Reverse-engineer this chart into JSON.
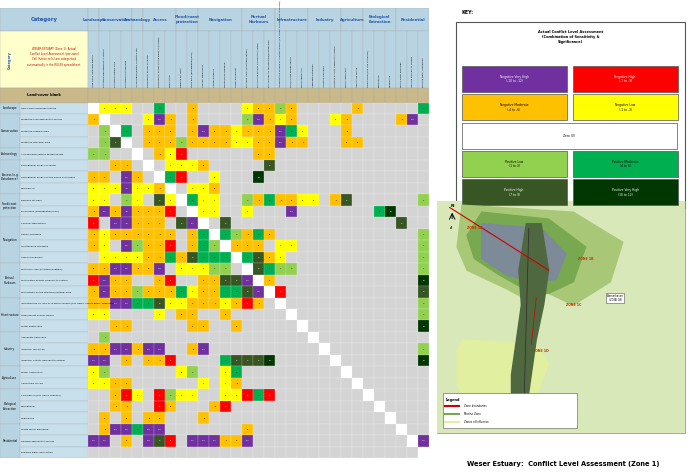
{
  "title": "Weser Estuary:  Conflict Level Assessment (Zone 1)",
  "note_text": "WESER ESTUARY (Zone 1): Actual\nConflict Level Assessment (per zone)\nCell (hence cells) are categorised\nautomatically in the RULES spreadsheet.",
  "land_cover_label": "Land-cover blank",
  "header_bg": "#b8d4e3",
  "cat_bg": "#b8d4e3",
  "row_label_bg": "#c8e0ec",
  "note_bg": "#ffffcc",
  "tan_col": "#c8b88a",
  "color_map": {
    "neg_very_high": "#7030a0",
    "neg_high": "#ff0000",
    "neg_moderate": "#ffc000",
    "neg_low": "#ffff00",
    "zero": "#ffffff",
    "pos_low": "#92d050",
    "pos_moderate": "#00b050",
    "pos_high": "#375623",
    "pos_very_high": "#003700",
    "blank": "#d4d4d4"
  },
  "row_labels": [
    "High value landscape feature",
    "Protected area adjacent to system",
    "Protected subtidal area",
    "Protected intertidal area",
    "Archaelogical/history protected site",
    "Recreational access on water",
    "Recreational access on the banks & interface",
    "Commercial",
    "Defence set-back",
    "Flood bank (demagnation/level)",
    "Channel stabilisation",
    "Capital Dredging",
    "Maintenance Dredging",
    "Vessel movement",
    "Port land claim (intertidal/subtidal)",
    "Port related activity adjacent to system",
    "Port activity on the intertidal/subtidal area",
    "Infrastructure on land or in water column (e.g. pipes, cables, piers, moorings)",
    "Tidal/current energy device",
    "Water abstraction",
    "Aggregate extraction",
    "Industrial discharge",
    "Industrial activity adjacent to system",
    "Water Abstraction",
    "Agriculture run-off",
    "Commercial (e.g. fish & shellfish)",
    "Recreational",
    "Wildfowling",
    "Waste water discharge",
    "Housing adjacent to system",
    "Drinking water abstraction"
  ],
  "col_labels": [
    "High value landscape feature",
    "Protected area adjacent to system",
    "Protected subtidal area",
    "Protected intertidal area",
    "Archaelogical/history protected site",
    "Recreational access on water",
    "Recreational access on the banks & interface",
    "Commercial",
    "Defence set-back",
    "Flood bank (demagnation/level)",
    "Channel stabilisation",
    "Capital Dredging",
    "Maintenance Dredging",
    "Vessel movement",
    "Port land claim (intertidal/subtidal)",
    "Port related activity adjacent to system",
    "Port activity on the intertidal/subtidal area",
    "Infrastructure on land or in water column (e.g. pipes, cables, piers, moorings)",
    "Tidal/current energy device",
    "Water abstraction",
    "Aggregate extraction",
    "Industrial discharge",
    "Industrial activity adjacent to system",
    "Water Abstraction",
    "Agriculture run-off",
    "Commercial (e.g. fish & shellfish)",
    "Recreational",
    "Wildfowling",
    "Waste water discharge",
    "Housing adjacent to system",
    "Drinking water abstraction"
  ],
  "col_groups": [
    [
      "Landscape",
      [
        0
      ]
    ],
    [
      "Conservation",
      [
        1,
        2,
        3
      ]
    ],
    [
      "Archaeology",
      [
        4
      ]
    ],
    [
      "Access",
      [
        5,
        6,
        7
      ]
    ],
    [
      "Flood/coast\nprotection",
      [
        8,
        9
      ]
    ],
    [
      "Navigation",
      [
        10,
        11,
        12,
        13
      ]
    ],
    [
      "Portual\nHarbours",
      [
        14,
        15,
        16
      ]
    ],
    [
      "Infrastructure",
      [
        17,
        18,
        19
      ]
    ],
    [
      "Industry",
      [
        20,
        21,
        22
      ]
    ],
    [
      "Agriculture",
      [
        23,
        24
      ]
    ],
    [
      "Biological\nExtraction",
      [
        25,
        26,
        27
      ]
    ],
    [
      "Residential",
      [
        28,
        29,
        30
      ]
    ]
  ],
  "row_cats": [
    [
      "Landscape",
      [
        0
      ]
    ],
    [
      "Conservation",
      [
        1,
        2,
        3
      ]
    ],
    [
      "Archaeology",
      [
        4
      ]
    ],
    [
      "Access (e.g.\nDisturbance)",
      [
        5,
        6,
        7
      ]
    ],
    [
      "Flood/coast\nprotection",
      [
        8,
        9
      ]
    ],
    [
      "Navigation",
      [
        10,
        11,
        12,
        13
      ]
    ],
    [
      "Portual\nHarbours",
      [
        14,
        15,
        16
      ]
    ],
    [
      "Infrastructure",
      [
        17,
        18,
        19
      ]
    ],
    [
      "Industry",
      [
        20,
        21,
        22
      ]
    ],
    [
      "Agriculture",
      [
        23,
        24
      ]
    ],
    [
      "Biological\nExtraction",
      [
        25,
        26,
        27
      ]
    ],
    [
      "Residential",
      [
        28,
        29,
        30
      ]
    ]
  ],
  "matrix_vals": [
    [
      null,
      -2,
      -3,
      -3,
      0,
      0,
      6,
      0,
      0,
      -4,
      0,
      0,
      0,
      0,
      -2,
      -6,
      -6,
      3,
      -6,
      0,
      0,
      0,
      0,
      0,
      -4,
      0,
      0,
      0,
      0,
      0,
      4
    ],
    [
      -4,
      null,
      0,
      0,
      0,
      -3,
      -10,
      -4,
      0,
      -4,
      0,
      0,
      0,
      0,
      2,
      -10,
      -4,
      -1,
      -6,
      0,
      0,
      0,
      -2,
      -4,
      0,
      0,
      0,
      0,
      -4,
      -10,
      0
    ],
    [
      0,
      1,
      null,
      6,
      0,
      -4,
      -6,
      -6,
      0,
      -6,
      -10,
      -6,
      -4,
      -3,
      -4,
      -6,
      -4,
      -10,
      4,
      -1,
      0,
      0,
      0,
      -4,
      0,
      0,
      0,
      0,
      0,
      0,
      0
    ],
    [
      0,
      1,
      8,
      null,
      0,
      -4,
      -6,
      -6,
      3,
      -6,
      -6,
      -6,
      -4,
      -3,
      -3,
      -6,
      -6,
      -10,
      -4,
      -4,
      0,
      0,
      0,
      -6,
      -6,
      0,
      0,
      0,
      0,
      0,
      0
    ],
    [
      2,
      1,
      0,
      0,
      null,
      0,
      -4,
      -3,
      -8,
      0,
      0,
      0,
      0,
      0,
      0,
      -6,
      -6,
      0,
      0,
      0,
      0,
      0,
      0,
      0,
      0,
      0,
      0,
      0,
      0,
      0,
      0
    ],
    [
      0,
      0,
      -6,
      -4,
      0,
      null,
      0,
      -1,
      -3,
      -1,
      -5,
      0,
      0,
      0,
      0,
      0,
      8,
      0,
      0,
      0,
      0,
      0,
      0,
      0,
      0,
      0,
      0,
      0,
      0,
      0,
      0
    ],
    [
      -4,
      -6,
      0,
      -10,
      -4,
      0,
      null,
      6,
      -8,
      0,
      0,
      -3,
      0,
      0,
      0,
      10,
      0,
      0,
      0,
      0,
      0,
      0,
      0,
      0,
      0,
      0,
      0,
      0,
      0,
      0,
      0
    ],
    [
      -2,
      -2,
      -3,
      -46,
      -1,
      -3,
      -4,
      null,
      0,
      -1,
      -3,
      -6,
      0,
      0,
      0,
      0,
      0,
      0,
      0,
      0,
      0,
      0,
      0,
      0,
      0,
      0,
      0,
      0,
      0,
      0,
      0
    ],
    [
      -3,
      -3,
      0,
      3,
      -1,
      0,
      8,
      -1,
      null,
      4,
      -1,
      -1,
      0,
      0,
      3,
      -4,
      4,
      -4,
      -5,
      -3,
      -2,
      0,
      -4,
      8,
      0,
      0,
      0,
      0,
      0,
      0,
      1
    ],
    [
      -4,
      -10,
      -6,
      -40,
      -4,
      -6,
      -6,
      -8,
      0,
      null,
      -1,
      -1,
      0,
      0,
      -1,
      0,
      0,
      0,
      -10,
      0,
      0,
      0,
      0,
      0,
      0,
      0,
      6,
      12,
      0,
      0,
      0
    ],
    [
      -8,
      0,
      -10,
      -40,
      -4,
      -6,
      -6,
      0,
      8,
      -11,
      null,
      0,
      8,
      0,
      0,
      0,
      0,
      0,
      0,
      0,
      0,
      0,
      0,
      0,
      0,
      0,
      0,
      0,
      8,
      0,
      0
    ],
    [
      -4,
      -2,
      -6,
      -6,
      -4,
      -6,
      -4,
      -6,
      0,
      -5,
      4,
      null,
      4,
      3,
      -4,
      6,
      -6,
      0,
      0,
      0,
      0,
      0,
      0,
      0,
      0,
      0,
      0,
      0,
      0,
      0,
      1
    ],
    [
      -4,
      -2,
      0,
      -16,
      1,
      -6,
      -4,
      -8,
      0,
      -5,
      4,
      2,
      null,
      -4,
      -6,
      -6,
      0,
      -1,
      -3,
      0,
      0,
      0,
      0,
      0,
      0,
      0,
      0,
      0,
      0,
      0,
      1
    ],
    [
      0,
      -2,
      -3,
      -3,
      -2,
      -6,
      -4,
      5,
      -4,
      8,
      4,
      4,
      4,
      null,
      4,
      8,
      -6,
      -3,
      0,
      0,
      0,
      0,
      0,
      0,
      0,
      0,
      0,
      0,
      0,
      0,
      1
    ],
    [
      -6,
      -6,
      -16,
      -16,
      -4,
      -6,
      -10,
      0,
      -2,
      -1,
      -2,
      2,
      3,
      0,
      null,
      8,
      4,
      1,
      3,
      0,
      0,
      0,
      0,
      0,
      0,
      0,
      0,
      0,
      0,
      0,
      1
    ],
    [
      -8,
      -16,
      -6,
      -6,
      0,
      0,
      -6,
      -8,
      0,
      0,
      -6,
      -6,
      8,
      8,
      -12,
      null,
      -6,
      0,
      0,
      0,
      0,
      0,
      0,
      0,
      0,
      0,
      0,
      0,
      0,
      0,
      12
    ],
    [
      -4,
      -16,
      -6,
      -6,
      1,
      -6,
      -6,
      -4,
      5,
      -1,
      -6,
      -6,
      4,
      4,
      8,
      -16,
      null,
      -8,
      0,
      0,
      0,
      0,
      0,
      0,
      0,
      0,
      0,
      0,
      0,
      0,
      8
    ],
    [
      -4,
      -4,
      -10,
      -10,
      4,
      4,
      8,
      -3,
      -1,
      -6,
      -6,
      -4,
      -3,
      -5,
      -8,
      -4,
      0,
      null,
      0,
      0,
      0,
      0,
      0,
      0,
      0,
      0,
      0,
      0,
      0,
      0,
      3
    ],
    [
      -3,
      -3,
      0,
      0,
      0,
      0,
      -3,
      0,
      -6,
      -6,
      0,
      0,
      -6,
      0,
      0,
      0,
      0,
      0,
      null,
      0,
      0,
      0,
      0,
      0,
      0,
      0,
      0,
      0,
      0,
      0,
      3
    ],
    [
      0,
      0,
      -4,
      -4,
      0,
      0,
      0,
      0,
      0,
      -6,
      -6,
      0,
      0,
      -6,
      0,
      0,
      0,
      0,
      0,
      null,
      0,
      0,
      0,
      0,
      0,
      0,
      0,
      0,
      0,
      0,
      10
    ],
    [
      0,
      1,
      0,
      0,
      0,
      0,
      0,
      0,
      0,
      0,
      0,
      0,
      0,
      0,
      0,
      0,
      0,
      0,
      0,
      0,
      null,
      0,
      0,
      0,
      0,
      0,
      0,
      0,
      0,
      0,
      0
    ],
    [
      -4,
      -4,
      -10,
      -10,
      -4,
      -10,
      -12,
      0,
      0,
      -4,
      -10,
      0,
      0,
      0,
      0,
      0,
      0,
      0,
      0,
      0,
      0,
      null,
      0,
      0,
      0,
      0,
      0,
      0,
      0,
      0,
      1
    ],
    [
      -10,
      -10,
      0,
      -6,
      0,
      -6,
      -4,
      -8,
      0,
      0,
      0,
      0,
      4,
      8,
      8,
      8,
      10,
      0,
      0,
      0,
      0,
      0,
      null,
      0,
      0,
      0,
      0,
      0,
      0,
      0,
      12
    ],
    [
      -2,
      2,
      0,
      0,
      0,
      0,
      0,
      0,
      -2,
      2,
      0,
      0,
      -1,
      4,
      0,
      0,
      0,
      0,
      0,
      0,
      0,
      0,
      0,
      null,
      0,
      0,
      0,
      0,
      0,
      0,
      0
    ],
    [
      -2,
      -2,
      -6,
      -6,
      0,
      0,
      0,
      0,
      0,
      0,
      -1,
      0,
      -1,
      -4,
      0,
      0,
      0,
      0,
      0,
      0,
      0,
      0,
      0,
      0,
      null,
      0,
      0,
      0,
      0,
      0,
      0
    ],
    [
      0,
      0,
      -6,
      -8,
      -1,
      0,
      -9,
      2,
      -1,
      -1,
      0,
      0,
      -2,
      -2,
      -8,
      6,
      -8,
      0,
      0,
      0,
      0,
      0,
      0,
      0,
      0,
      null,
      0,
      0,
      0,
      0,
      0
    ],
    [
      0,
      0,
      -4,
      -4,
      0,
      0,
      -9,
      -6,
      0,
      0,
      0,
      -4,
      -8,
      0,
      0,
      0,
      0,
      0,
      0,
      0,
      0,
      0,
      0,
      0,
      0,
      0,
      null,
      0,
      0,
      0,
      0
    ],
    [
      0,
      -6,
      0,
      -6,
      0,
      -4,
      -6,
      0,
      0,
      0,
      -4,
      0,
      0,
      0,
      0,
      0,
      0,
      0,
      0,
      0,
      0,
      0,
      0,
      0,
      0,
      0,
      0,
      null,
      0,
      0,
      0
    ],
    [
      0,
      -4,
      -10,
      -10,
      4,
      -10,
      -12,
      0,
      0,
      0,
      0,
      0,
      0,
      0,
      -6,
      0,
      0,
      0,
      0,
      0,
      0,
      0,
      0,
      0,
      0,
      0,
      0,
      0,
      null,
      0,
      0
    ],
    [
      -10,
      -10,
      0,
      -6,
      0,
      -10,
      8,
      -8,
      0,
      -10,
      -10,
      -12,
      -4,
      -6,
      -10,
      0,
      0,
      0,
      0,
      0,
      0,
      0,
      0,
      0,
      0,
      0,
      0,
      0,
      0,
      null,
      -10
    ],
    [
      0,
      0,
      0,
      0,
      0,
      0,
      0,
      0,
      0,
      0,
      0,
      0,
      0,
      0,
      0,
      0,
      0,
      0,
      0,
      0,
      0,
      0,
      0,
      0,
      0,
      0,
      0,
      0,
      0,
      0,
      null
    ]
  ]
}
